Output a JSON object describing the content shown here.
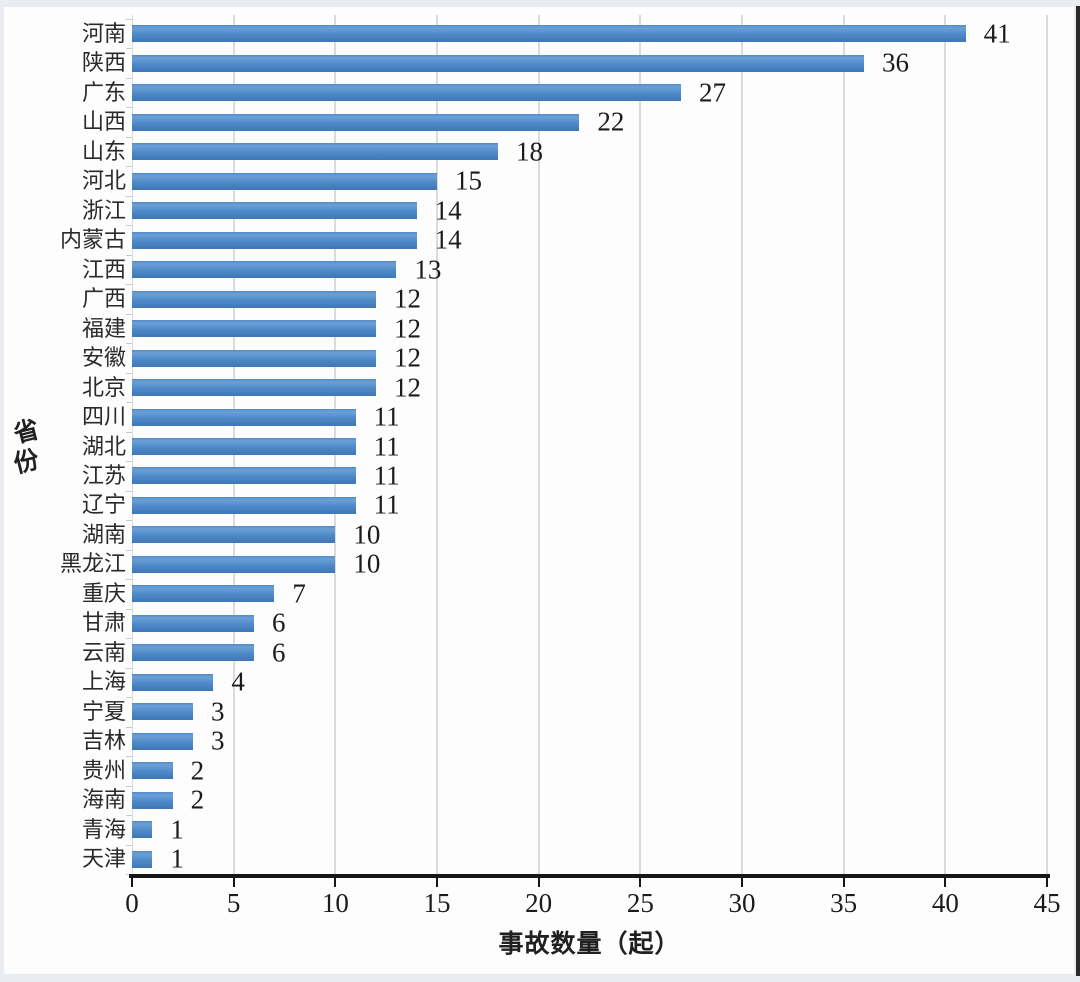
{
  "chart_data": {
    "type": "bar",
    "orientation": "horizontal",
    "title": "",
    "xlabel": "事故数量（起）",
    "ylabel": "省份",
    "xlim": [
      0,
      45
    ],
    "xticks": [
      0,
      5,
      10,
      15,
      20,
      25,
      30,
      35,
      40,
      45
    ],
    "grid": "vertical-on",
    "legend": "none",
    "bar_color": "#4a86c6",
    "gridline_color": "#d8dbdf",
    "axis_color": "#161616",
    "categories": [
      "河南",
      "陕西",
      "广东",
      "山西",
      "山东",
      "河北",
      "浙江",
      "内蒙古",
      "江西",
      "广西",
      "福建",
      "安徽",
      "北京",
      "四川",
      "湖北",
      "江苏",
      "辽宁",
      "湖南",
      "黑龙江",
      "重庆",
      "甘肃",
      "云南",
      "上海",
      "宁夏",
      "吉林",
      "贵州",
      "海南",
      "青海",
      "天津"
    ],
    "values": [
      41,
      36,
      27,
      22,
      18,
      15,
      14,
      14,
      13,
      12,
      12,
      12,
      12,
      11,
      11,
      11,
      11,
      10,
      10,
      7,
      6,
      6,
      4,
      3,
      3,
      2,
      2,
      1,
      1
    ],
    "data_labels_shown": true
  }
}
